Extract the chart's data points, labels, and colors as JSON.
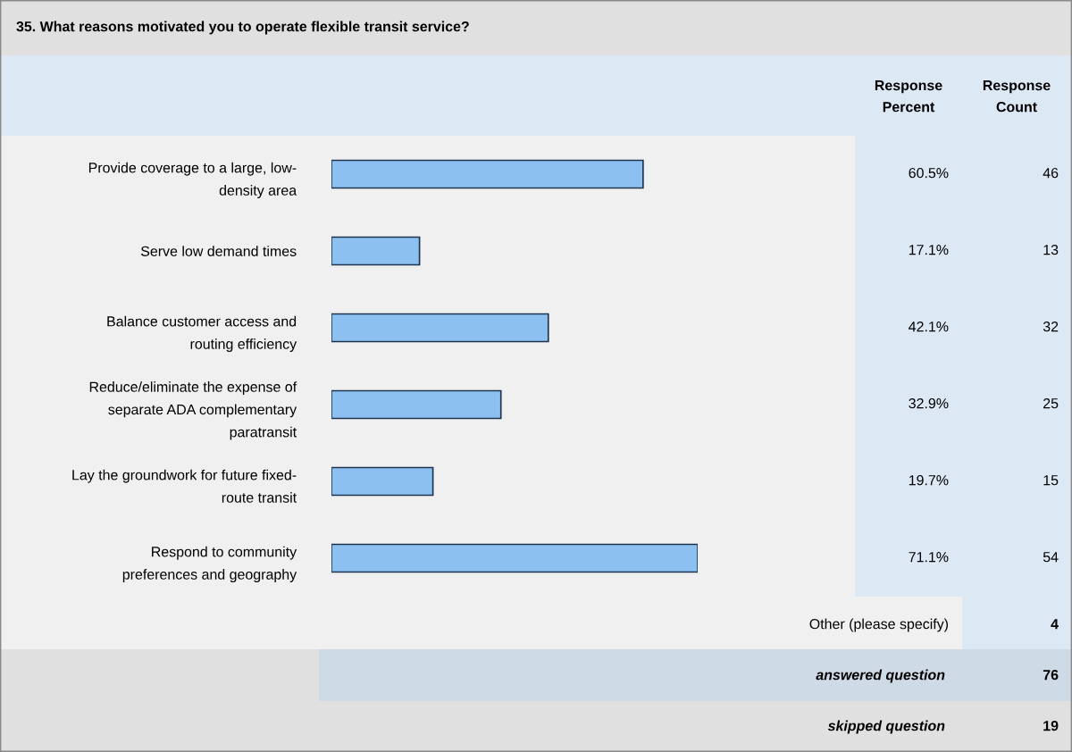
{
  "chart_data": {
    "type": "bar",
    "orientation": "horizontal",
    "title": "35. What reasons motivated you to operate flexible transit service?",
    "categories": [
      "Provide coverage to a large, low-\ndensity area",
      "Serve low demand times",
      "Balance customer access and\nrouting efficiency",
      "Reduce/eliminate the expense of\nseparate ADA complementary\nparatransit",
      "Lay the groundwork for future fixed-\nroute transit",
      "Respond to community\npreferences and geography"
    ],
    "values": [
      60.5,
      17.1,
      42.1,
      32.9,
      19.7,
      71.1
    ],
    "value_labels": [
      "60.5%",
      "17.1%",
      "42.1%",
      "32.9%",
      "19.7%",
      "71.1%"
    ],
    "color": "#8cc0f0",
    "tick_labels": "y",
    "grid": false,
    "annotations": [
      "Response\nPercent",
      "Response\nCount",
      "46",
      "13",
      "32",
      "25",
      "15",
      "54",
      "Other (please specify)",
      "4",
      "answered question",
      "76",
      "skipped question",
      "19"
    ]
  }
}
